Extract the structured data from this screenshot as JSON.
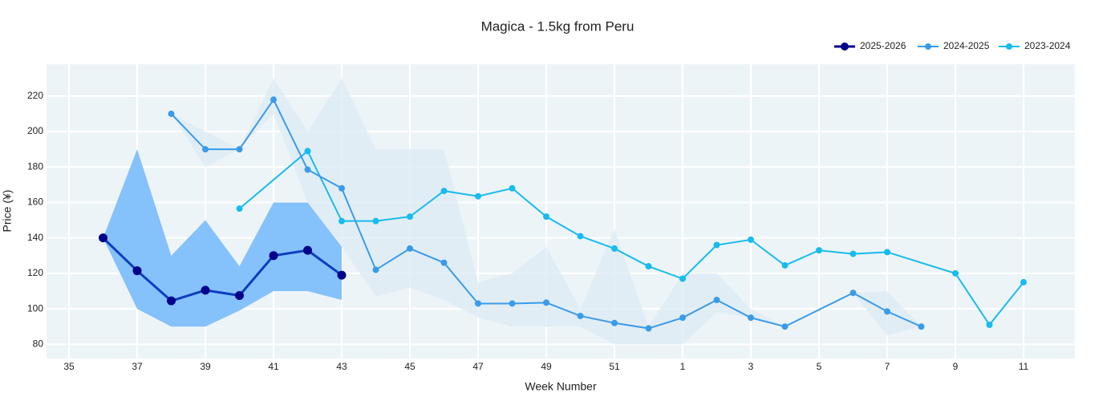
{
  "chart_data": {
    "type": "line",
    "title": "Magica - 1.5kg from Peru",
    "x_label": "Week Number",
    "y_label": "Price (¥)",
    "categories": [
      "35",
      null,
      "37",
      null,
      "39",
      null,
      "41",
      null,
      "43",
      null,
      "45",
      null,
      "47",
      null,
      "49",
      null,
      "51",
      null,
      "1",
      null,
      "3",
      null,
      "5",
      null,
      "7",
      null,
      "9",
      null,
      "11",
      null
    ],
    "ylim": [
      72,
      238
    ],
    "yticks": [
      80,
      100,
      120,
      140,
      160,
      180,
      200,
      220
    ],
    "grid": true,
    "connect_gaps": true,
    "legend": "top-right",
    "series": [
      {
        "name": "2025-2026",
        "color": "#0a3fbf",
        "marker_color": "#00008b",
        "band_color": "#85c1fb",
        "values": [
          null,
          140,
          121.5,
          104.5,
          110.5,
          107.5,
          130,
          133,
          119,
          null,
          null,
          null,
          null,
          null,
          null,
          null,
          null,
          null,
          null,
          null,
          null,
          null,
          null,
          null,
          null,
          null,
          null,
          null,
          null,
          null
        ],
        "band_low": [
          null,
          140,
          100,
          90,
          90,
          99,
          110,
          110,
          105,
          null,
          null,
          null,
          null,
          null,
          null,
          null,
          null,
          null,
          null,
          null,
          null,
          null,
          null,
          null,
          null,
          null,
          null,
          null,
          null,
          null
        ],
        "band_high": [
          null,
          140,
          190,
          130,
          150,
          124,
          160,
          160,
          135,
          null,
          null,
          null,
          null,
          null,
          null,
          null,
          null,
          null,
          null,
          null,
          null,
          null,
          null,
          null,
          null,
          null,
          null,
          null,
          null,
          null
        ]
      },
      {
        "name": "2024-2025",
        "color": "#3a9be8",
        "marker_color": "#3a9be8",
        "band_color": "#dcebf3",
        "values": [
          null,
          null,
          null,
          210,
          190,
          190,
          218,
          178.5,
          168,
          122,
          134,
          126,
          103,
          103,
          103.5,
          96,
          92,
          89,
          95,
          105,
          95,
          90,
          null,
          109,
          98.5,
          90,
          null,
          null,
          null,
          null
        ],
        "band_low": [
          null,
          null,
          null,
          210,
          180,
          190,
          210,
          160,
          135,
          107,
          112,
          105,
          95,
          90,
          90,
          90,
          80,
          80,
          80,
          98,
          95,
          90,
          null,
          109,
          85,
          90,
          null,
          null,
          null,
          null
        ],
        "band_high": [
          null,
          null,
          null,
          210,
          200,
          190,
          230,
          200,
          230,
          190,
          190,
          190,
          115,
          120,
          135,
          100,
          145,
          90,
          120,
          120,
          100,
          90,
          null,
          109,
          110,
          90,
          null,
          null,
          null,
          null
        ]
      },
      {
        "name": "2023-2024",
        "color": "#17bcec",
        "marker_color": "#17bcec",
        "values": [
          null,
          null,
          null,
          null,
          null,
          156.5,
          null,
          189,
          149.5,
          149.5,
          152,
          166.5,
          163.5,
          168,
          152,
          141,
          134,
          124,
          117,
          136,
          139,
          124.5,
          133,
          131,
          132,
          null,
          120,
          91,
          115,
          null
        ]
      }
    ]
  }
}
